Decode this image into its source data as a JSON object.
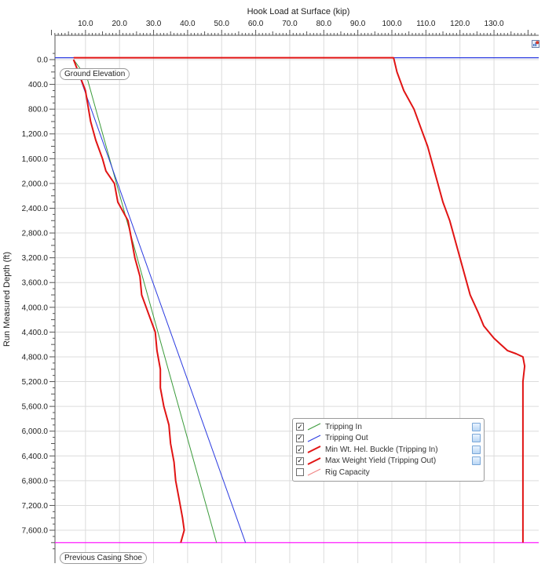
{
  "chart_data": {
    "type": "line",
    "title": "",
    "xlabel": "Hook Load at Surface (kip)",
    "ylabel": "Run Measured Depth (ft)",
    "xlim": [
      0,
      143
    ],
    "ylim": [
      -200,
      7900
    ],
    "x_ticks": [
      10.0,
      20.0,
      30.0,
      40.0,
      50.0,
      60.0,
      70.0,
      80.0,
      90.0,
      100.0,
      110.0,
      120.0,
      130.0
    ],
    "x_tick_labels": [
      "10.0",
      "20.0",
      "30.0",
      "40.0",
      "50.0",
      "60.0",
      "70.0",
      "80.0",
      "90.0",
      "100.0",
      "110.0",
      "120.0",
      "130.0"
    ],
    "y_ticks": [
      0,
      400,
      800,
      1200,
      1600,
      2000,
      2400,
      2800,
      3200,
      3600,
      4000,
      4400,
      4800,
      5200,
      5600,
      6000,
      6400,
      6800,
      7200,
      7600
    ],
    "y_tick_labels": [
      "0.0",
      "400.0",
      "800.0",
      "1,200.0",
      "1,600.0",
      "2,000.0",
      "2,400.0",
      "2,800.0",
      "3,200.0",
      "3,600.0",
      "4,000.0",
      "4,400.0",
      "4,800.0",
      "5,200.0",
      "5,600.0",
      "6,000.0",
      "6,400.0",
      "6,800.0",
      "7,200.0",
      "7,600.0"
    ],
    "grid": true,
    "legend_position": "bottom-right",
    "series": [
      {
        "name": "Tripping In",
        "color": "#3a9a3a",
        "x": [
          6.5,
          10.5,
          48.5
        ],
        "y": [
          0,
          300,
          7800
        ]
      },
      {
        "name": "Tripping Out",
        "color": "#2a3ae0",
        "x": [
          6.5,
          57.0
        ],
        "y": [
          0,
          7800
        ]
      },
      {
        "name": "Min Wt. Hel. Buckle (Tripping In)",
        "color": "#e11414",
        "x": [
          6.5,
          10.0,
          11.5,
          13.0,
          15.0,
          16.0,
          18.5,
          19.5,
          22.5,
          23.5,
          24.5,
          26.0,
          26.5,
          28.5,
          30.5,
          31.0,
          32.0,
          32.0,
          33.0,
          34.5,
          35.0,
          36.0,
          36.5,
          37.5,
          38.5,
          39.0,
          38.0
        ],
        "y": [
          0,
          500,
          1000,
          1300,
          1600,
          1800,
          2000,
          2300,
          2600,
          2900,
          3200,
          3500,
          3800,
          4100,
          4400,
          4700,
          5000,
          5300,
          5600,
          5900,
          6200,
          6500,
          6800,
          7100,
          7400,
          7600,
          7800
        ]
      },
      {
        "name": "Max Weight Yield (Tripping Out)",
        "color": "#e11414",
        "x": [
          6.5,
          100.5,
          101.5,
          103.5,
          106.5,
          108.5,
          110.5,
          112.0,
          113.5,
          115.0,
          117.0,
          118.5,
          120.0,
          121.5,
          123.0,
          125.5,
          127.0,
          128.5,
          130.0,
          132.0,
          134.0,
          136.5,
          138.5,
          139.0,
          138.5,
          138.5,
          138.5
        ],
        "y": [
          -30,
          -30,
          200,
          500,
          800,
          1100,
          1400,
          1700,
          2000,
          2300,
          2600,
          2900,
          3200,
          3500,
          3800,
          4100,
          4300,
          4400,
          4500,
          4600,
          4700,
          4750,
          4800,
          4950,
          5200,
          6000,
          7800
        ]
      },
      {
        "name": "Rig Capacity",
        "color": "#f08080",
        "x": [],
        "y": []
      }
    ],
    "reference_lines": [
      {
        "label": "Ground Elevation",
        "y": -30,
        "color": "#2a3ae0"
      },
      {
        "label": "Previous Casing Shoe",
        "y": 7800,
        "color": "#ff00ff"
      }
    ]
  },
  "legend": [
    {
      "label": "Tripping In",
      "checked": true,
      "color": "#3a9a3a",
      "width": 1
    },
    {
      "label": "Tripping Out",
      "checked": true,
      "color": "#2a3ae0",
      "width": 1
    },
    {
      "label": "Min Wt. Hel. Buckle (Tripping In)",
      "checked": true,
      "color": "#e11414",
      "width": 2
    },
    {
      "label": "Max Weight Yield (Tripping Out)",
      "checked": true,
      "color": "#e11414",
      "width": 2
    },
    {
      "label": "Rig Capacity",
      "checked": false,
      "color": "#f08080",
      "width": 1
    }
  ],
  "check_mark": "✓",
  "corner_icon": "chart-options-icon"
}
